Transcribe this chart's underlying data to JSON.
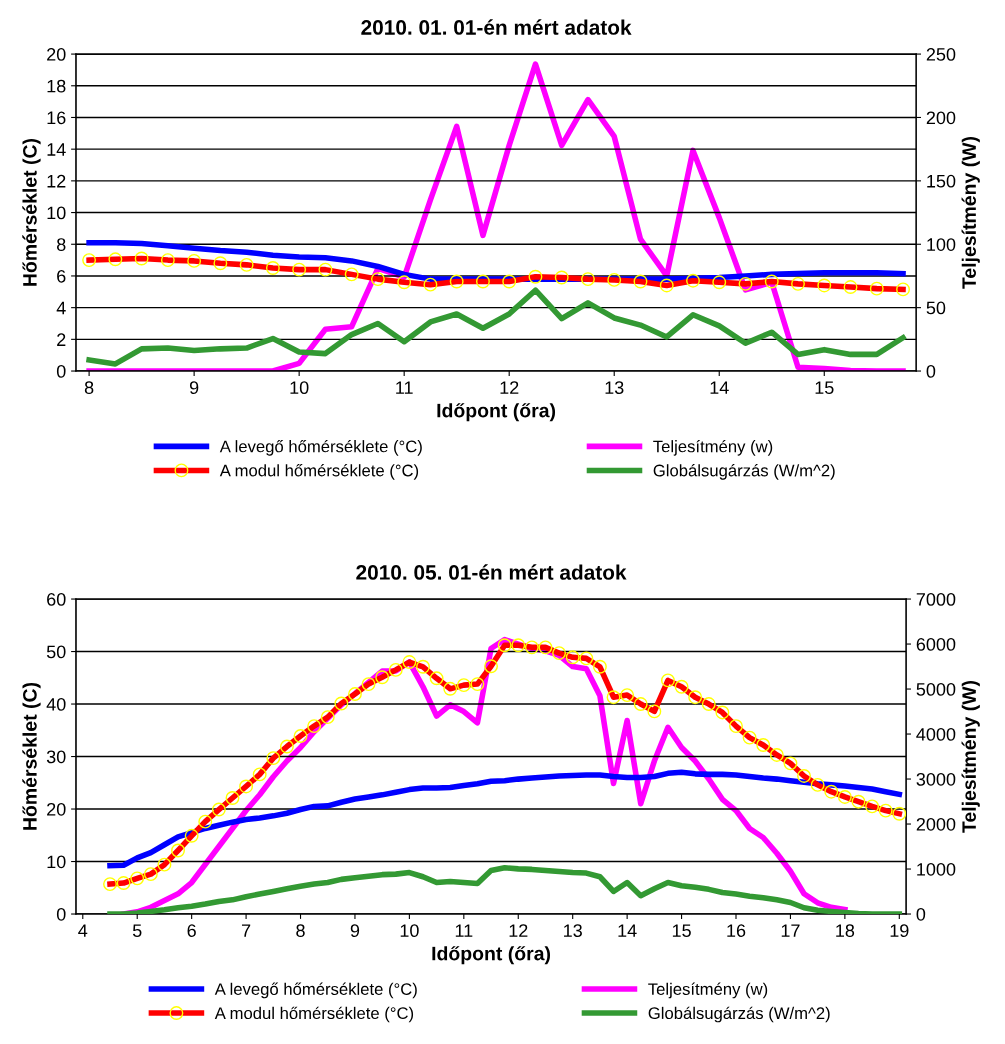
{
  "chart_data": [
    {
      "type": "line",
      "title": "2010. 01. 01-én mért adatok",
      "xlabel": "Időpont (őra)",
      "ylabel": "Hőmérséklet (C)",
      "y2label": "Teljesítmény (W)",
      "x": [
        8.0,
        8.25,
        8.5,
        8.75,
        9.0,
        9.25,
        9.5,
        9.75,
        10.0,
        10.25,
        10.5,
        10.75,
        11.0,
        11.25,
        11.5,
        11.75,
        12.0,
        12.25,
        12.5,
        12.75,
        13.0,
        13.25,
        13.5,
        13.75,
        14.0,
        14.25,
        14.5,
        14.75,
        15.0,
        15.25,
        15.5,
        15.75
      ],
      "xlim": [
        7.875,
        15.875
      ],
      "xticks": [
        8,
        9,
        10,
        11,
        12,
        13,
        14,
        15
      ],
      "ylim": [
        0,
        20
      ],
      "yticks": [
        0,
        2,
        4,
        6,
        8,
        10,
        12,
        14,
        16,
        18,
        20
      ],
      "y2lim": [
        0,
        250
      ],
      "y2ticks": [
        0,
        50,
        100,
        150,
        200,
        250
      ],
      "grid": "y",
      "legend": "bottom",
      "series": [
        {
          "name": "A levegő hőmérséklete (°C)",
          "color": "#0000ff",
          "values": [
            8.1,
            8.1,
            8.05,
            7.9,
            7.75,
            7.6,
            7.5,
            7.3,
            7.2,
            7.15,
            6.95,
            6.6,
            6.1,
            5.8,
            5.8,
            5.8,
            5.8,
            5.8,
            5.8,
            5.8,
            5.8,
            5.8,
            5.8,
            5.85,
            5.9,
            6.0,
            6.1,
            6.15,
            6.2,
            6.2,
            6.2,
            6.15
          ]
        },
        {
          "name": "A modul hőmérséklete (°C)",
          "color": "#ff0000",
          "marker": "circle",
          "values": [
            7.0,
            7.05,
            7.1,
            7.0,
            6.95,
            6.8,
            6.7,
            6.5,
            6.4,
            6.4,
            6.1,
            5.8,
            5.6,
            5.45,
            5.65,
            5.65,
            5.65,
            5.95,
            5.9,
            5.8,
            5.75,
            5.65,
            5.4,
            5.7,
            5.6,
            5.5,
            5.65,
            5.5,
            5.4,
            5.3,
            5.2,
            5.15
          ]
        },
        {
          "name": "Teljesítmény (w)",
          "color": "#ff00ff",
          "axis": "y2",
          "values": [
            0,
            0,
            0,
            0,
            0,
            0,
            0,
            0,
            6,
            33,
            35,
            81,
            74,
            135,
            193,
            107,
            178,
            242,
            178,
            214,
            185,
            104,
            75,
            174,
            121,
            64,
            70,
            3,
            2,
            0.5,
            0,
            0
          ]
        },
        {
          "name": "Globálsugárzás (W/m^2)",
          "color": "#339933",
          "values": [
            0.7,
            0.45,
            1.4,
            1.45,
            1.3,
            1.4,
            1.45,
            2.05,
            1.2,
            1.1,
            2.3,
            3.0,
            1.85,
            3.1,
            3.6,
            2.7,
            3.6,
            5.1,
            3.3,
            4.3,
            3.35,
            2.9,
            2.15,
            3.55,
            2.85,
            1.75,
            2.45,
            1.05,
            1.35,
            1.05,
            1.05,
            2.1
          ]
        }
      ]
    },
    {
      "type": "line",
      "title": "2010. 05. 01-én mért adatok",
      "xlabel": "Időpont (őra)",
      "ylabel": "Hőmérséklet (C)",
      "y2label": "Teljesítmény (W)",
      "x": [
        4.5,
        4.75,
        5.0,
        5.25,
        5.5,
        5.75,
        6.0,
        6.25,
        6.5,
        6.75,
        7.0,
        7.25,
        7.5,
        7.75,
        8.0,
        8.25,
        8.5,
        8.75,
        9.0,
        9.25,
        9.5,
        9.75,
        10.0,
        10.25,
        10.5,
        10.75,
        11.0,
        11.25,
        11.5,
        11.75,
        12.0,
        12.25,
        12.5,
        12.75,
        13.0,
        13.25,
        13.5,
        13.75,
        14.0,
        14.25,
        14.5,
        14.75,
        15.0,
        15.25,
        15.5,
        15.75,
        16.0,
        16.25,
        16.5,
        16.75,
        17.0,
        17.25,
        17.5,
        17.75,
        18.0,
        18.25,
        18.5,
        18.75,
        19.0
      ],
      "xlim": [
        3.875,
        19.125
      ],
      "xticks": [
        4,
        5,
        6,
        7,
        8,
        9,
        10,
        11,
        12,
        13,
        14,
        15,
        16,
        17,
        18,
        19
      ],
      "ylim": [
        0,
        60
      ],
      "yticks": [
        0,
        10,
        20,
        30,
        40,
        50,
        60
      ],
      "y2lim": [
        0,
        7000
      ],
      "y2ticks": [
        0,
        1000,
        2000,
        3000,
        4000,
        5000,
        6000,
        7000
      ],
      "grid": "y",
      "legend": "bottom",
      "series": [
        {
          "name": "A levegő hőmérséklete (°C)",
          "color": "#0000ff",
          "values": [
            9.2,
            9.3,
            10.7,
            11.7,
            13.2,
            14.7,
            15.5,
            16.3,
            16.9,
            17.5,
            18.0,
            18.3,
            18.7,
            19.2,
            19.9,
            20.5,
            20.6,
            21.3,
            21.9,
            22.3,
            22.7,
            23.2,
            23.7,
            24.0,
            24.0,
            24.1,
            24.5,
            24.8,
            25.3,
            25.4,
            25.7,
            25.9,
            26.1,
            26.3,
            26.4,
            26.5,
            26.5,
            26.2,
            26.0,
            26.0,
            26.2,
            26.8,
            27.0,
            26.7,
            26.6,
            26.6,
            26.5,
            26.2,
            25.9,
            25.7,
            25.4,
            25.1,
            24.8,
            24.6,
            24.4,
            24.1,
            23.8,
            23.3,
            22.8
          ]
        },
        {
          "name": "A modul hőmérséklete (°C)",
          "color": "#ff0000",
          "marker": "circle",
          "values": [
            5.7,
            5.9,
            6.8,
            7.6,
            9.4,
            12.1,
            14.9,
            17.6,
            19.9,
            22.1,
            24.3,
            26.6,
            29.7,
            31.9,
            33.9,
            35.8,
            37.5,
            40.1,
            41.9,
            43.8,
            45.1,
            46.5,
            48.0,
            47.1,
            44.9,
            42.9,
            43.6,
            43.8,
            47.2,
            51.2,
            51.2,
            50.8,
            50.8,
            49.7,
            48.9,
            48.7,
            47.1,
            41.3,
            41.7,
            40.0,
            38.6,
            44.5,
            43.3,
            41.3,
            40.0,
            38.4,
            35.8,
            33.6,
            32.2,
            30.3,
            28.7,
            26.3,
            24.6,
            23.3,
            22.3,
            21.4,
            20.5,
            19.7,
            19.1
          ]
        },
        {
          "name": "Teljesítmény (w)",
          "color": "#ff00ff",
          "axis": "y2",
          "values": [
            null,
            0,
            50,
            150,
            300,
            450,
            700,
            1100,
            1500,
            1900,
            2300,
            2650,
            3050,
            3400,
            3700,
            4050,
            4350,
            4650,
            4900,
            5150,
            5400,
            5400,
            5600,
            5050,
            4400,
            4650,
            4500,
            4250,
            5900,
            6100,
            6000,
            5900,
            5850,
            5750,
            5500,
            5450,
            4850,
            2900,
            4300,
            2450,
            3400,
            4150,
            3700,
            3400,
            3000,
            2550,
            2300,
            1900,
            1700,
            1350,
            950,
            450,
            250,
            150,
            100,
            null,
            null,
            null,
            null
          ]
        },
        {
          "name": "Globálsugárzás (W/m^2)",
          "color": "#339933",
          "values": [
            0,
            0,
            0.2,
            0.5,
            0.8,
            1.2,
            1.5,
            1.9,
            2.4,
            2.7,
            3.3,
            3.8,
            4.3,
            4.8,
            5.3,
            5.7,
            6.0,
            6.6,
            6.9,
            7.2,
            7.5,
            7.6,
            7.9,
            7.1,
            6.0,
            6.2,
            6.0,
            5.8,
            8.3,
            8.8,
            8.6,
            8.5,
            8.3,
            8.1,
            7.9,
            7.8,
            7.1,
            4.3,
            6.0,
            3.5,
            4.8,
            6.0,
            5.4,
            5.1,
            4.7,
            4.1,
            3.8,
            3.4,
            3.1,
            2.7,
            2.2,
            1.2,
            0.7,
            0.5,
            0.3,
            0.1,
            0,
            0,
            0
          ]
        }
      ]
    }
  ]
}
